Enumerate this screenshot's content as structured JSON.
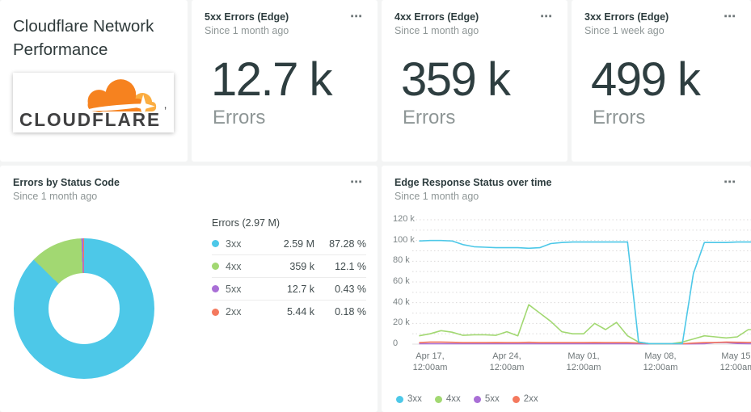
{
  "dashboard": {
    "title_card": {
      "title": "Cloudflare Network Performance",
      "logo_text": "CLOUDFLARE",
      "logo_mark": "’",
      "logo_orange": "#f6821f",
      "logo_light_orange": "#fbad41",
      "logo_text_color": "#404041"
    },
    "menu_icon": "⋯",
    "metric_cards": [
      {
        "title": "5xx Errors (Edge)",
        "subtitle": "Since 1 month ago",
        "value": "12.7 k",
        "label": "Errors"
      },
      {
        "title": "4xx Errors (Edge)",
        "subtitle": "Since 1 month ago",
        "value": "359 k",
        "label": "Errors"
      },
      {
        "title": "3xx Errors (Edge)",
        "subtitle": "Since 1 week ago",
        "value": "499 k",
        "label": "Errors"
      }
    ],
    "donut_card": {
      "title": "Errors by Status Code",
      "subtitle": "Since 1 month ago",
      "table_header": "Errors (2.97 M)"
    },
    "line_card": {
      "title": "Edge Response Status over time",
      "subtitle": "Since 1 month ago"
    }
  },
  "chart_data": [
    {
      "type": "pie",
      "title": "Errors by Status Code",
      "total_label": "Errors (2.97 M)",
      "donut": true,
      "slices": [
        {
          "label": "3xx",
          "value_label": "2.59 M",
          "percent": 87.28,
          "percent_label": "87.28 %",
          "color": "#4dc8e8"
        },
        {
          "label": "4xx",
          "value_label": "359 k",
          "percent": 12.1,
          "percent_label": "12.1 %",
          "color": "#a2d872"
        },
        {
          "label": "5xx",
          "value_label": "12.7 k",
          "percent": 0.43,
          "percent_label": "0.43 %",
          "color": "#a96fd6"
        },
        {
          "label": "2xx",
          "value_label": "5.44 k",
          "percent": 0.18,
          "percent_label": "0.18 %",
          "color": "#f4795e"
        }
      ]
    },
    {
      "type": "line",
      "title": "Edge Response Status over time",
      "ylim_k": [
        0,
        120
      ],
      "y_grid_step_k": 10,
      "grid": "dotted horizontal",
      "legend_position": "bottom-left",
      "y_ticks": [
        {
          "label": "120 k",
          "value_k": 120
        },
        {
          "label": "100 k",
          "value_k": 100
        },
        {
          "label": "80 k",
          "value_k": 80
        },
        {
          "label": "60 k",
          "value_k": 60
        },
        {
          "label": "40 k",
          "value_k": 40
        },
        {
          "label": "20 k",
          "value_k": 20
        },
        {
          "label": "0",
          "value_k": 0
        }
      ],
      "x_tick_labels": [
        {
          "date": "Apr 17,",
          "time": "12:00am"
        },
        {
          "date": "Apr 24,",
          "time": "12:00am"
        },
        {
          "date": "May 01,",
          "time": "12:00am"
        },
        {
          "date": "May 08,",
          "time": "12:00am"
        },
        {
          "date": "May 15,",
          "time": "12:00am"
        }
      ],
      "x_start_day": "Apr 16",
      "x_tick_every_days": 7,
      "series": [
        {
          "name": "3xx",
          "color": "#4dc8e8",
          "values_k": [
            99.5,
            100,
            100,
            99.5,
            96,
            94,
            93.5,
            93,
            93,
            93,
            92.5,
            93,
            97,
            98,
            98.5,
            98.5,
            98.5,
            98.5,
            98.5,
            98.5,
            2,
            0.5,
            0.5,
            0.5,
            0.5,
            68,
            98,
            98,
            98,
            98.5,
            98.5,
            98.5
          ]
        },
        {
          "name": "4xx",
          "color": "#a2d872",
          "values_k": [
            8,
            10,
            13,
            11.5,
            8.5,
            9,
            9,
            8.5,
            12,
            8,
            38,
            30,
            22,
            12,
            10,
            10,
            20,
            14,
            21,
            8,
            2,
            0.5,
            0.5,
            0.5,
            2,
            5,
            8,
            7,
            6,
            7,
            14,
            14
          ]
        },
        {
          "name": "5xx",
          "color": "#a96fd6",
          "values_k": [
            0.4,
            0.4,
            0.4,
            0.4,
            0.4,
            0.4,
            0.4,
            0.4,
            0.4,
            0.4,
            0.4,
            0.4,
            0.4,
            0.4,
            0.4,
            0.4,
            0.4,
            0.4,
            0.4,
            0.4,
            0.3,
            0.2,
            0.2,
            0.2,
            0.2,
            0.3,
            0.4,
            1.5,
            1.5,
            0.6,
            0.4,
            0.4
          ]
        },
        {
          "name": "2xx",
          "color": "#f4795e",
          "values_k": [
            1.5,
            2,
            2,
            1.8,
            1.5,
            1.5,
            1.5,
            1.6,
            1.5,
            1.5,
            1.8,
            1.5,
            1.5,
            1.5,
            1.5,
            1.5,
            1.6,
            1.5,
            1.5,
            1.5,
            1,
            0.4,
            0.3,
            0.3,
            0.4,
            1,
            1.5,
            1.6,
            2,
            1.8,
            1.7,
            1.7
          ]
        }
      ],
      "legend_order": [
        "3xx",
        "4xx",
        "5xx",
        "2xx"
      ],
      "draw_order": [
        "5xx",
        "2xx",
        "4xx",
        "3xx"
      ]
    }
  ]
}
